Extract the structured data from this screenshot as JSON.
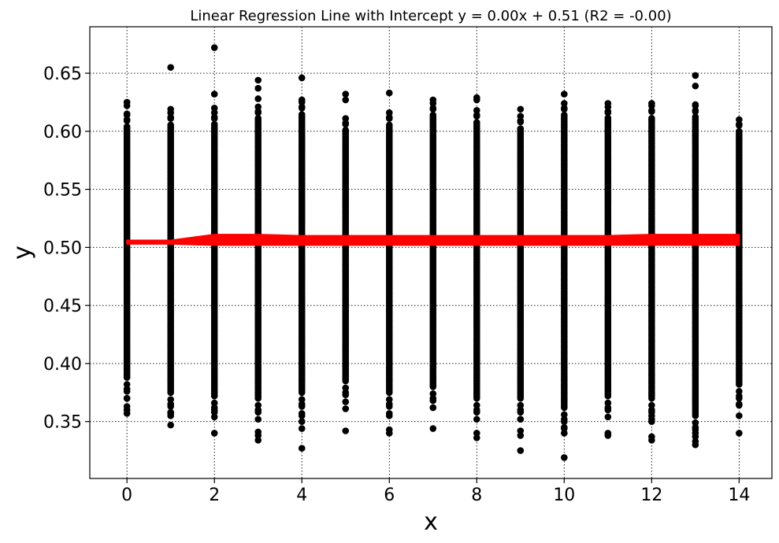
{
  "chart_data": {
    "type": "scatter",
    "title": "Linear Regression Line with Intercept y = 0.00x + 0.51 (R2 = -0.00)",
    "xlabel": "x",
    "ylabel": "y",
    "xlim": [
      -0.85,
      14.75
    ],
    "ylim": [
      0.301,
      0.69
    ],
    "xticks": [
      0,
      2,
      4,
      6,
      8,
      10,
      12,
      14
    ],
    "xtick_labels": [
      "0",
      "2",
      "4",
      "6",
      "8",
      "10",
      "12",
      "14"
    ],
    "yticks": [
      0.35,
      0.4,
      0.45,
      0.5,
      0.55,
      0.6,
      0.65
    ],
    "ytick_labels": [
      "0.35",
      "0.40",
      "0.45",
      "0.50",
      "0.55",
      "0.60",
      "0.65"
    ],
    "grid": true,
    "scatter_color": "#000000",
    "line_color": "#ff0000",
    "columns": [
      {
        "x": 0,
        "min": 0.357,
        "max": 0.626,
        "outliers": [
          0.357,
          0.36,
          0.363,
          0.37,
          0.378,
          0.625,
          0.622,
          0.615,
          0.61
        ]
      },
      {
        "x": 1,
        "min": 0.347,
        "max": 0.655,
        "outliers": [
          0.347,
          0.355,
          0.358,
          0.365,
          0.655,
          0.619,
          0.612
        ]
      },
      {
        "x": 2,
        "min": 0.34,
        "max": 0.672,
        "outliers": [
          0.34,
          0.358,
          0.362,
          0.672,
          0.632,
          0.62,
          0.612
        ]
      },
      {
        "x": 3,
        "min": 0.334,
        "max": 0.644,
        "outliers": [
          0.334,
          0.338,
          0.341,
          0.36,
          0.644,
          0.637,
          0.628,
          0.617
        ]
      },
      {
        "x": 4,
        "min": 0.327,
        "max": 0.646,
        "outliers": [
          0.327,
          0.344,
          0.35,
          0.355,
          0.365,
          0.646,
          0.627,
          0.621
        ]
      },
      {
        "x": 5,
        "min": 0.342,
        "max": 0.632,
        "outliers": [
          0.342,
          0.361,
          0.375,
          0.632,
          0.627,
          0.607
        ]
      },
      {
        "x": 6,
        "min": 0.34,
        "max": 0.633,
        "outliers": [
          0.34,
          0.343,
          0.355,
          0.365,
          0.633,
          0.612
        ]
      },
      {
        "x": 7,
        "min": 0.344,
        "max": 0.627,
        "outliers": [
          0.344,
          0.362,
          0.37,
          0.627,
          0.62
        ]
      },
      {
        "x": 8,
        "min": 0.336,
        "max": 0.629,
        "outliers": [
          0.336,
          0.34,
          0.36,
          0.629,
          0.627,
          0.614
        ]
      },
      {
        "x": 9,
        "min": 0.325,
        "max": 0.619,
        "outliers": [
          0.325,
          0.338,
          0.342,
          0.352,
          0.36,
          0.619,
          0.609
        ]
      },
      {
        "x": 10,
        "min": 0.319,
        "max": 0.632,
        "outliers": [
          0.319,
          0.34,
          0.345,
          0.352,
          0.632,
          0.62
        ]
      },
      {
        "x": 11,
        "min": 0.338,
        "max": 0.624,
        "outliers": [
          0.338,
          0.34,
          0.362,
          0.624,
          0.617
        ]
      },
      {
        "x": 12,
        "min": 0.334,
        "max": 0.624,
        "outliers": [
          0.334,
          0.337,
          0.35,
          0.355,
          0.36,
          0.624,
          0.618
        ]
      },
      {
        "x": 13,
        "min": 0.33,
        "max": 0.648,
        "outliers": [
          0.33,
          0.333,
          0.34,
          0.345,
          0.648,
          0.639,
          0.623,
          0.618
        ]
      },
      {
        "x": 14,
        "min": 0.34,
        "max": 0.61,
        "outliers": [
          0.34,
          0.355,
          0.365,
          0.372,
          0.61,
          0.606
        ]
      }
    ],
    "regression_band": {
      "x": [
        0,
        1,
        2,
        3,
        4,
        5,
        6,
        7,
        8,
        9,
        10,
        11,
        12,
        13,
        14
      ],
      "low": [
        0.503,
        0.503,
        0.502,
        0.502,
        0.502,
        0.502,
        0.502,
        0.502,
        0.502,
        0.502,
        0.502,
        0.502,
        0.502,
        0.502,
        0.502
      ],
      "high": [
        0.506,
        0.506,
        0.511,
        0.511,
        0.51,
        0.51,
        0.51,
        0.51,
        0.51,
        0.51,
        0.51,
        0.51,
        0.511,
        0.511,
        0.511
      ]
    }
  }
}
